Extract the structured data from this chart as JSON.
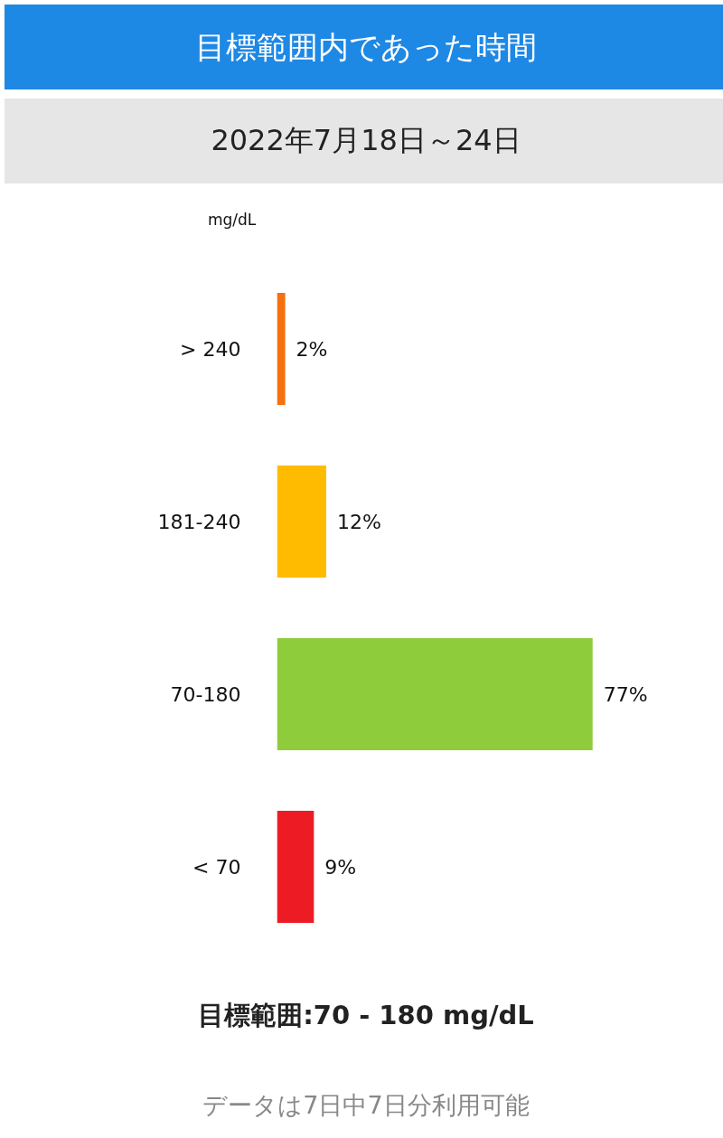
{
  "chart_data": {
    "type": "bar",
    "orientation": "horizontal",
    "title": "目標範囲内であった時間",
    "subtitle": "2022年7月18日～24日",
    "ylabel": "mg/dL",
    "categories": [
      "> 240",
      "181-240",
      "70-180",
      "< 70"
    ],
    "values": [
      2,
      12,
      77,
      9
    ],
    "colors": [
      "#f5700f",
      "#ffbb00",
      "#8fcc3b",
      "#ed1c24"
    ],
    "value_labels": [
      "2%",
      "12%",
      "77%",
      "9%"
    ],
    "grid": false,
    "annotations": [
      "目標範囲:70 - 180 mg/dL",
      "データは7日中7日分利用可能"
    ]
  }
}
